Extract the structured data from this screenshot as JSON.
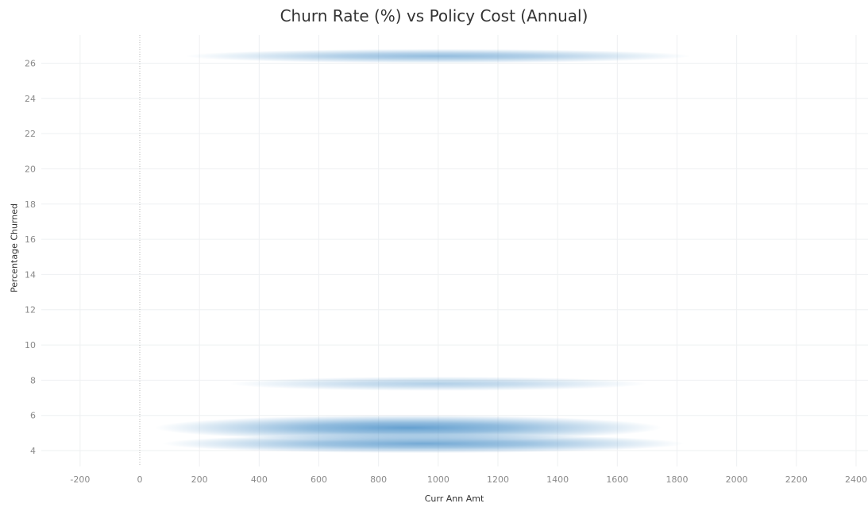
{
  "chart_data": {
    "type": "heatmap",
    "title": "Churn Rate (%) vs Policy Cost (Annual)",
    "xlabel": "Curr Ann Amt",
    "ylabel": "Percentage Churned",
    "xlim": [
      -330,
      2440
    ],
    "ylim": [
      3.1,
      27.6
    ],
    "x_ticks": [
      -200,
      0,
      200,
      400,
      600,
      800,
      1000,
      1200,
      1400,
      1600,
      1800,
      2000,
      2200,
      2400
    ],
    "y_ticks": [
      4,
      6,
      8,
      10,
      12,
      14,
      16,
      18,
      20,
      22,
      24,
      26
    ],
    "grid": true,
    "color": "#4a90c8",
    "bands": [
      {
        "y": 26.4,
        "x_center": 1000,
        "x_min": 200,
        "x_max": 1900,
        "intensity": 0.7
      },
      {
        "y": 7.8,
        "x_center": 1000,
        "x_min": 300,
        "x_max": 1700,
        "intensity": 0.5
      },
      {
        "y": 5.3,
        "x_center": 900,
        "x_min": 100,
        "x_max": 1800,
        "intensity": 1.0
      },
      {
        "y": 4.4,
        "x_center": 950,
        "x_min": 150,
        "x_max": 1900,
        "intensity": 0.9
      }
    ]
  }
}
